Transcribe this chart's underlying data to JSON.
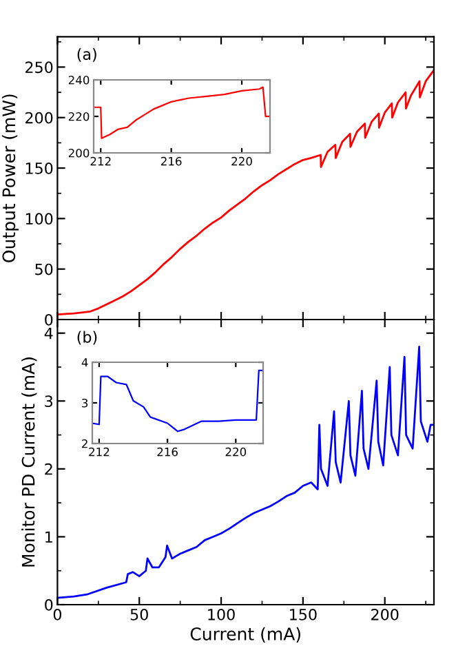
{
  "chart_data": [
    {
      "type": "line",
      "ylabel": "Output Power (mW)",
      "annotations": [
        "(a)"
      ],
      "xlim": [
        0,
        230
      ],
      "ylim": [
        0,
        280
      ],
      "xticks": [
        0,
        {
          "value": 25,
          "label": null
        },
        50,
        {
          "value": 75,
          "label": null
        },
        100,
        {
          "value": 125,
          "label": null
        },
        150,
        {
          "value": 175,
          "label": null
        },
        200,
        {
          "value": 225,
          "label": null
        }
      ],
      "yticks": [
        0,
        {
          "value": 25,
          "label": null
        },
        50,
        {
          "value": 75,
          "label": null
        },
        100,
        {
          "value": 125,
          "label": null
        },
        150,
        {
          "value": 175,
          "label": null
        },
        200,
        {
          "value": 225,
          "label": null
        },
        250,
        {
          "value": 275,
          "label": null
        }
      ],
      "tick_labels": "y",
      "grid": false,
      "marker": "none",
      "line_style": "solid",
      "series": [
        {
          "color": "#ff0000",
          "x": [
            0,
            10,
            20,
            25,
            30,
            35,
            40,
            45,
            50,
            55,
            60,
            65,
            70,
            75,
            80,
            85,
            90,
            95,
            100,
            105,
            110,
            115,
            120,
            125,
            130,
            135,
            140,
            145,
            150,
            155,
            160.8,
            161.0,
            165,
            169.8,
            170.0,
            174,
            178.8,
            179.0,
            183,
            187.8,
            188.0,
            192,
            196.3,
            196.5,
            200,
            204.3,
            204.5,
            208,
            212.7,
            212.9,
            216,
            221.2,
            221.4,
            225,
            230
          ],
          "values": [
            5,
            6,
            8,
            11,
            15,
            19,
            23,
            28,
            34,
            40,
            47,
            55,
            62,
            70,
            77,
            83,
            90,
            96,
            101,
            108,
            114,
            120,
            127,
            133,
            138,
            144,
            149,
            154,
            158,
            160,
            163,
            151,
            166,
            173,
            160,
            176,
            184,
            171,
            186,
            194,
            180,
            196,
            204,
            190,
            205,
            214,
            200,
            215,
            225,
            209,
            222,
            236,
            220,
            236,
            247
          ]
        }
      ]
    },
    {
      "type": "line",
      "xlim": [
        211.6,
        221.6
      ],
      "ylim": [
        200,
        240
      ],
      "xticks": [
        212,
        216,
        220
      ],
      "yticks": [
        200,
        220,
        240
      ],
      "grid": false,
      "marker": "none",
      "line_style": "solid",
      "series": [
        {
          "color": "#ff0000",
          "x": [
            211.6,
            212.0,
            212.05,
            212.5,
            213.0,
            213.5,
            214.0,
            214.5,
            215.0,
            215.5,
            216.0,
            216.5,
            217.0,
            218.0,
            219.0,
            220.0,
            221.0,
            221.2,
            221.35,
            221.6
          ],
          "values": [
            225,
            225,
            208,
            210,
            213,
            214,
            218,
            221,
            224,
            226,
            228,
            229,
            230,
            231,
            232,
            234,
            235,
            236,
            220,
            220
          ]
        }
      ]
    },
    {
      "type": "line",
      "xlabel": "Current (mA)",
      "ylabel": "Monitor PD Current (mA)",
      "annotations": [
        "(b)"
      ],
      "xlim": [
        0,
        230
      ],
      "ylim": [
        0,
        4.2
      ],
      "xticks": [
        0,
        {
          "value": 25,
          "label": null
        },
        50,
        {
          "value": 75,
          "label": null
        },
        100,
        {
          "value": 125,
          "label": null
        },
        150,
        {
          "value": 175,
          "label": null
        },
        200,
        {
          "value": 225,
          "label": null
        }
      ],
      "yticks": [
        0,
        {
          "value": 0.5,
          "label": null
        },
        1,
        {
          "value": 1.5,
          "label": null
        },
        2,
        {
          "value": 2.5,
          "label": null
        },
        3,
        {
          "value": 3.5,
          "label": null
        },
        4
      ],
      "grid": false,
      "marker": "none",
      "line_style": "solid",
      "series": [
        {
          "color": "#0000ff",
          "x": [
            0,
            10,
            18,
            30,
            42,
            43,
            46,
            50,
            54,
            55,
            58,
            62,
            66,
            67,
            70,
            75,
            80,
            85,
            90,
            95,
            100,
            105,
            110,
            115,
            120,
            125,
            130,
            135,
            140,
            145,
            150,
            155,
            159,
            160,
            161,
            165,
            169,
            170,
            173,
            178,
            179,
            182,
            186,
            187,
            190,
            195,
            196,
            199,
            203,
            204,
            208,
            212,
            213,
            217,
            221,
            222,
            226,
            228,
            230
          ],
          "values": [
            0.1,
            0.12,
            0.15,
            0.25,
            0.33,
            0.45,
            0.48,
            0.42,
            0.5,
            0.68,
            0.55,
            0.55,
            0.7,
            0.87,
            0.68,
            0.75,
            0.8,
            0.85,
            0.95,
            1.0,
            1.05,
            1.12,
            1.2,
            1.28,
            1.35,
            1.4,
            1.45,
            1.52,
            1.6,
            1.65,
            1.75,
            1.8,
            1.7,
            2.65,
            2.0,
            1.75,
            2.85,
            2.1,
            1.8,
            3.0,
            2.2,
            1.9,
            3.15,
            2.3,
            2.0,
            3.3,
            2.4,
            2.05,
            3.5,
            2.5,
            2.2,
            3.65,
            2.5,
            2.3,
            3.8,
            2.7,
            2.4,
            2.65,
            2.65
          ]
        }
      ]
    },
    {
      "type": "line",
      "xlim": [
        211.6,
        221.6
      ],
      "ylim": [
        2,
        4
      ],
      "xticks": [
        212,
        216,
        220
      ],
      "yticks": [
        2,
        3,
        4
      ],
      "grid": false,
      "marker": "none",
      "line_style": "solid",
      "series": [
        {
          "color": "#0000ff",
          "x": [
            211.6,
            212.0,
            212.1,
            212.5,
            213.0,
            213.6,
            214.0,
            214.6,
            215.0,
            216.0,
            216.6,
            217.0,
            218.0,
            219.0,
            220.0,
            221.2,
            221.35,
            221.6
          ],
          "values": [
            2.5,
            2.47,
            3.65,
            3.65,
            3.5,
            3.45,
            3.05,
            2.9,
            2.65,
            2.5,
            2.3,
            2.35,
            2.55,
            2.55,
            2.58,
            2.58,
            3.8,
            3.8
          ]
        }
      ]
    }
  ]
}
